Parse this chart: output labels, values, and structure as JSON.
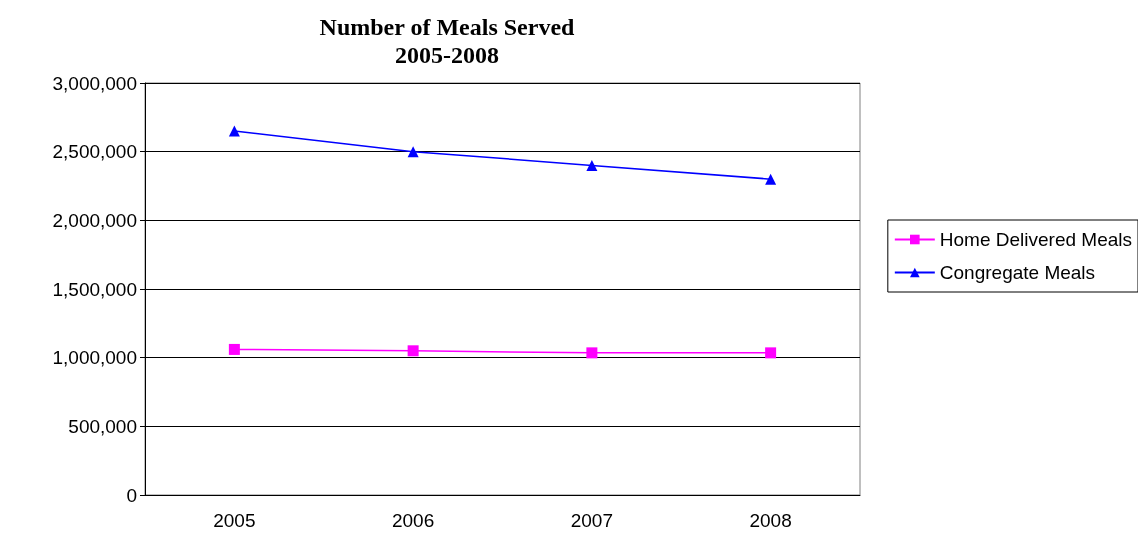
{
  "chart_data": {
    "type": "line",
    "title": "Number of Meals Served\n2005-2008",
    "categories": [
      "2005",
      "2006",
      "2007",
      "2008"
    ],
    "series": [
      {
        "name": "Home Delivered Meals",
        "color": "#ff00ff",
        "marker": "square",
        "values": [
          1060000,
          1050000,
          1035000,
          1035000
        ]
      },
      {
        "name": "Congregate Meals",
        "color": "#0000ff",
        "marker": "triangle",
        "values": [
          2650000,
          2500000,
          2400000,
          2300000
        ]
      }
    ],
    "ylim": [
      0,
      3000000
    ],
    "yticks": [
      0,
      {
        "value": 500000,
        "label": "500,000"
      },
      {
        "value": 1000000,
        "label": "1,000,000"
      },
      {
        "value": 1500000,
        "label": "1,500,000"
      },
      {
        "value": 2000000,
        "label": "2,000,000"
      },
      {
        "value": 2500000,
        "label": "2,500,000"
      },
      {
        "value": 3000000,
        "label": "3,000,000"
      }
    ],
    "grid": "y",
    "legend": "right"
  }
}
